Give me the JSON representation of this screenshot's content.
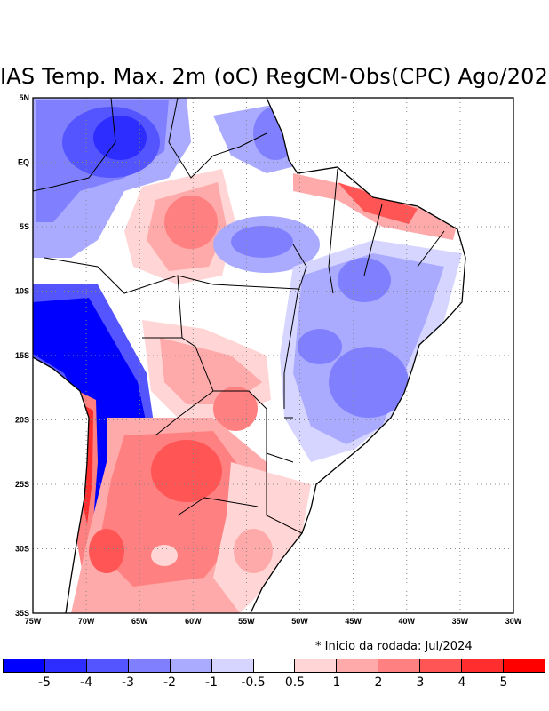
{
  "title": "IAS Temp. Max. 2m (oC) RegCM-Obs(CPC) Ago/202",
  "note": "* Inicio da rodada: Jul/2024",
  "axes": {
    "lon_labels": [
      "75W",
      "70W",
      "65W",
      "60W",
      "55W",
      "50W",
      "45W",
      "40W",
      "35W",
      "30W"
    ],
    "lat_labels": [
      "5N",
      "EQ",
      "5S",
      "10S",
      "15S",
      "20S",
      "25S",
      "30S",
      "35S"
    ]
  },
  "colorbar": {
    "colors": [
      "#0000ff",
      "#2d2dff",
      "#5555ff",
      "#8080ff",
      "#aaaaff",
      "#d5d5ff",
      "#ffffff",
      "#ffd5d5",
      "#ffaaaa",
      "#ff8080",
      "#ff5555",
      "#ff2d2d",
      "#ff0000"
    ],
    "labels": [
      "-5",
      "-4",
      "-3",
      "-2",
      "-1",
      "-0.5",
      "0.5",
      "1",
      "2",
      "3",
      "4",
      "5"
    ]
  }
}
